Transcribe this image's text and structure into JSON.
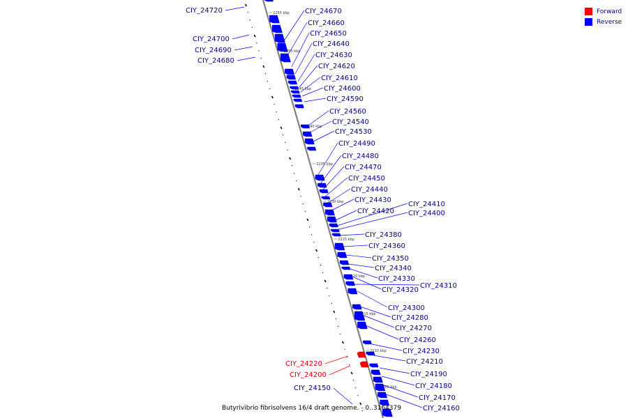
{
  "colors": {
    "forward": "#ff0000",
    "reverse": "#0000ff",
    "forward_label": "#cc0000",
    "reverse_label": "#000080",
    "backbone": "#808080"
  },
  "legend": [
    {
      "label": "Forward",
      "color": "#ff0000"
    },
    {
      "label": "Reverse",
      "color": "#0000ff"
    }
  ],
  "caption": "Butyrivibrio fibrisolvens 16/4 draft genome. - 0..3164379",
  "scale_marks": [
    "2255 kbp",
    "2250 kbp",
    "2245 kbp",
    "2240 kbp",
    "2235 kbp",
    "2230 kbp",
    "2225 kbp",
    "2220 kbp",
    "2215 kbp",
    "2210 kbp",
    "2205 kbp"
  ],
  "genes": [
    {
      "id": "CIY_24720",
      "strand": "reverse",
      "side": "left"
    },
    {
      "id": "CIY_24700",
      "strand": "reverse",
      "side": "left"
    },
    {
      "id": "CIY_24690",
      "strand": "reverse",
      "side": "left"
    },
    {
      "id": "CIY_24680",
      "strand": "reverse",
      "side": "left"
    },
    {
      "id": "CIY_24670",
      "strand": "reverse",
      "side": "right"
    },
    {
      "id": "CIY_24660",
      "strand": "reverse",
      "side": "right"
    },
    {
      "id": "CIY_24650",
      "strand": "reverse",
      "side": "right"
    },
    {
      "id": "CIY_24640",
      "strand": "reverse",
      "side": "right"
    },
    {
      "id": "CIY_24630",
      "strand": "reverse",
      "side": "right"
    },
    {
      "id": "CIY_24620",
      "strand": "reverse",
      "side": "right"
    },
    {
      "id": "CIY_24610",
      "strand": "reverse",
      "side": "right"
    },
    {
      "id": "CIY_24600",
      "strand": "reverse",
      "side": "right"
    },
    {
      "id": "CIY_24590",
      "strand": "reverse",
      "side": "right"
    },
    {
      "id": "CIY_24560",
      "strand": "reverse",
      "side": "right"
    },
    {
      "id": "CIY_24540",
      "strand": "reverse",
      "side": "right"
    },
    {
      "id": "CIY_24530",
      "strand": "reverse",
      "side": "right"
    },
    {
      "id": "CIY_24490",
      "strand": "reverse",
      "side": "right"
    },
    {
      "id": "CIY_24480",
      "strand": "reverse",
      "side": "right"
    },
    {
      "id": "CIY_24470",
      "strand": "reverse",
      "side": "right"
    },
    {
      "id": "CIY_24450",
      "strand": "reverse",
      "side": "right"
    },
    {
      "id": "CIY_24440",
      "strand": "reverse",
      "side": "right"
    },
    {
      "id": "CIY_24430",
      "strand": "reverse",
      "side": "right"
    },
    {
      "id": "CIY_24420",
      "strand": "reverse",
      "side": "right"
    },
    {
      "id": "CIY_24410",
      "strand": "reverse",
      "side": "right"
    },
    {
      "id": "CIY_24400",
      "strand": "reverse",
      "side": "right"
    },
    {
      "id": "CIY_24380",
      "strand": "reverse",
      "side": "right"
    },
    {
      "id": "CIY_24360",
      "strand": "reverse",
      "side": "right"
    },
    {
      "id": "CIY_24350",
      "strand": "reverse",
      "side": "right"
    },
    {
      "id": "CIY_24340",
      "strand": "reverse",
      "side": "right"
    },
    {
      "id": "CIY_24330",
      "strand": "reverse",
      "side": "right"
    },
    {
      "id": "CIY_24320",
      "strand": "reverse",
      "side": "right"
    },
    {
      "id": "CIY_24310",
      "strand": "reverse",
      "side": "right"
    },
    {
      "id": "CIY_24300",
      "strand": "reverse",
      "side": "right"
    },
    {
      "id": "CIY_24280",
      "strand": "reverse",
      "side": "right"
    },
    {
      "id": "CIY_24270",
      "strand": "reverse",
      "side": "right"
    },
    {
      "id": "CIY_24260",
      "strand": "reverse",
      "side": "right"
    },
    {
      "id": "CIY_24230",
      "strand": "reverse",
      "side": "right"
    },
    {
      "id": "CIY_24210",
      "strand": "reverse",
      "side": "right"
    },
    {
      "id": "CIY_24190",
      "strand": "reverse",
      "side": "right"
    },
    {
      "id": "CIY_24180",
      "strand": "reverse",
      "side": "right"
    },
    {
      "id": "CIY_24170",
      "strand": "reverse",
      "side": "right"
    },
    {
      "id": "CIY_24160",
      "strand": "reverse",
      "side": "right"
    },
    {
      "id": "CIY_24220",
      "strand": "forward",
      "side": "left"
    },
    {
      "id": "CIY_24200",
      "strand": "forward",
      "side": "left"
    },
    {
      "id": "CIY_24150",
      "strand": "reverse",
      "side": "left"
    }
  ]
}
